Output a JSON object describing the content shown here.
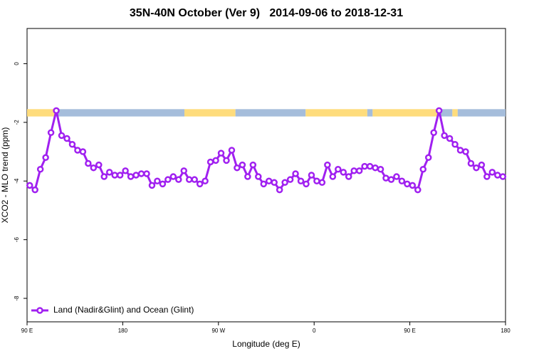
{
  "chart_data": {
    "type": "line",
    "title": "35N-40N October (Ver 9)   2014-09-06 to 2018-12-31",
    "x_label": "Longitude (deg E)",
    "y_label": "XCO2 - MLO trend (ppm)",
    "xlim": [
      90,
      540
    ],
    "ylim": [
      -8.8,
      1.2
    ],
    "xticks": [
      {
        "value": 90,
        "label": "90 E"
      },
      180,
      {
        "value": 270,
        "label": "90 W"
      },
      {
        "value": 360,
        "label": "0"
      },
      {
        "value": 450,
        "label": "90 E"
      },
      {
        "value": 540,
        "label": "180"
      }
    ],
    "yticks": [
      -8,
      -6,
      -4,
      -2,
      0
    ],
    "grid": false,
    "legend": "bottom-left",
    "strip": {
      "ylim": [
        -1.8,
        -1.55
      ],
      "segments": [
        {
          "x": [
            90,
            117
          ],
          "color": "#fedc7c"
        },
        {
          "x": [
            117,
            238
          ],
          "color": "#a5bddb"
        },
        {
          "x": [
            238,
            286
          ],
          "color": "#fedc7c"
        },
        {
          "x": [
            286,
            352
          ],
          "color": "#a5bddb"
        },
        {
          "x": [
            352,
            410
          ],
          "color": "#fedc7c"
        },
        {
          "x": [
            410,
            415
          ],
          "color": "#a5bddb"
        },
        {
          "x": [
            415,
            476
          ],
          "color": "#fedc7c"
        },
        {
          "x": [
            476,
            490
          ],
          "color": "#a5bddb"
        },
        {
          "x": [
            490,
            495
          ],
          "color": "#fedc7c"
        },
        {
          "x": [
            495,
            540
          ],
          "color": "#a5bddb"
        }
      ]
    },
    "x": [
      92.5,
      97.5,
      102.5,
      107.5,
      112.5,
      117.5,
      122.5,
      127.5,
      132.5,
      137.5,
      142.5,
      147.5,
      152.5,
      157.5,
      162.5,
      167.5,
      172.5,
      177.5,
      182.5,
      187.5,
      192.5,
      197.5,
      202.5,
      207.5,
      212.5,
      217.5,
      222.5,
      227.5,
      232.5,
      237.5,
      242.5,
      247.5,
      252.5,
      257.5,
      262.5,
      267.5,
      272.5,
      277.5,
      282.5,
      287.5,
      292.5,
      297.5,
      302.5,
      307.5,
      312.5,
      317.5,
      322.5,
      327.5,
      332.5,
      337.5,
      342.5,
      347.5,
      352.5,
      357.5,
      362.5,
      367.5,
      372.5,
      377.5,
      382.5,
      387.5,
      392.5,
      397.5,
      402.5,
      407.5,
      412.5,
      417.5,
      422.5,
      427.5,
      432.5,
      437.5,
      442.5,
      447.5,
      452.5,
      457.5,
      462.5,
      467.5,
      472.5,
      477.5,
      482.5,
      487.5,
      492.5,
      497.5,
      502.5,
      507.5,
      512.5,
      517.5,
      522.5,
      527.5,
      532.5,
      537.5
    ],
    "series": [
      {
        "name": "Land (Nadir&Glint) and Ocean (Glint)",
        "color": "#a020f0",
        "values": [
          -4.15,
          -4.3,
          -3.6,
          -3.2,
          -2.35,
          -1.6,
          -2.45,
          -2.55,
          -2.75,
          -2.95,
          -3.0,
          -3.4,
          -3.55,
          -3.45,
          -3.85,
          -3.7,
          -3.8,
          -3.8,
          -3.65,
          -3.85,
          -3.8,
          -3.75,
          -3.75,
          -4.15,
          -4.0,
          -4.1,
          -3.95,
          -3.85,
          -3.95,
          -3.65,
          -3.95,
          -3.95,
          -4.1,
          -4.0,
          -3.35,
          -3.3,
          -3.05,
          -3.3,
          -2.95,
          -3.55,
          -3.45,
          -3.85,
          -3.45,
          -3.85,
          -4.1,
          -4.0,
          -4.05,
          -4.3,
          -4.05,
          -3.95,
          -3.75,
          -4.0,
          -4.1,
          -3.8,
          -4.0,
          -4.05,
          -3.45,
          -3.85,
          -3.6,
          -3.7,
          -3.85,
          -3.65,
          -3.65,
          -3.5,
          -3.5,
          -3.55,
          -3.6,
          -3.9,
          -3.95,
          -3.85,
          -4.0,
          -4.1,
          -4.15,
          -4.3,
          -3.6,
          -3.2,
          -2.35,
          -1.6,
          -2.45,
          -2.55,
          -2.75,
          -2.95,
          -3.0,
          -3.4,
          -3.55,
          -3.45,
          -3.85,
          -3.7,
          -3.8,
          -3.85
        ]
      }
    ]
  }
}
